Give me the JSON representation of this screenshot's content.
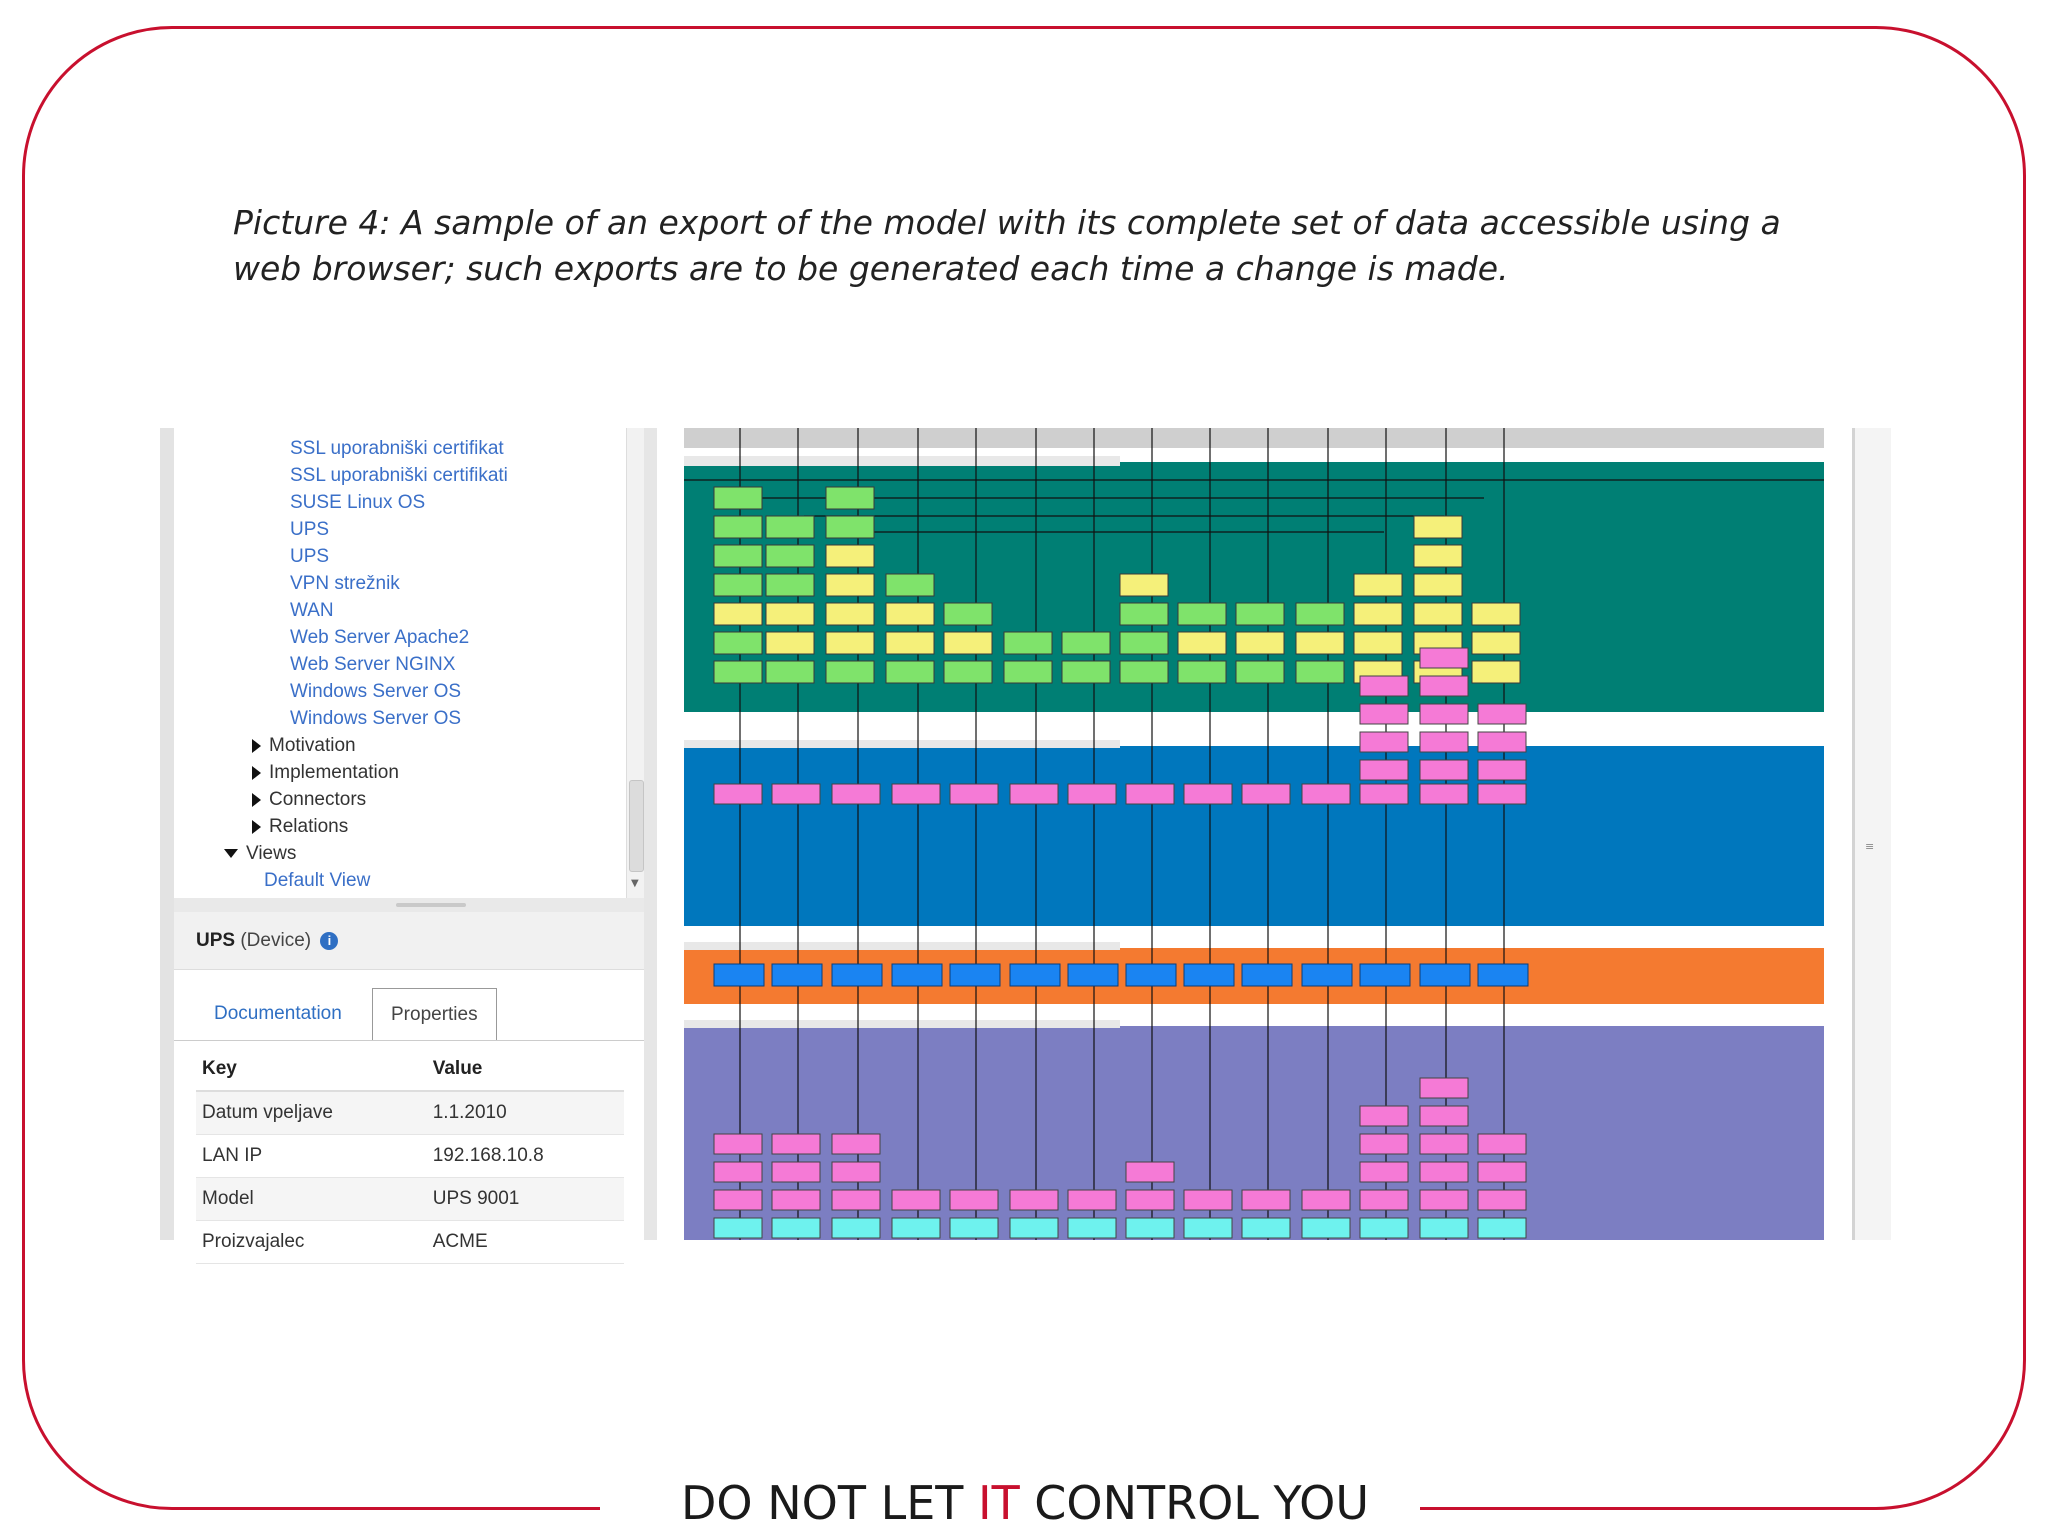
{
  "caption": "Picture 4: A sample of an export of the model with its complete set of data accessible using a web browser; such exports are to be generated each time a change is made.",
  "footer": {
    "part1": "DO NOT LET ",
    "highlight": "IT",
    "part2": " CONTROL YOU"
  },
  "colors": {
    "frame": "#c8102e",
    "link": "#3a6fc8",
    "tech_layer": "#007f74",
    "app_layer": "#0077bd",
    "business_layer": "#f47a30",
    "motivation_layer": "#7c7ec2"
  },
  "tree": {
    "items": [
      {
        "label": "SSL uporabniški certifikat",
        "type": "link"
      },
      {
        "label": "SSL uporabniški certifikati",
        "type": "link"
      },
      {
        "label": "SUSE Linux OS",
        "type": "link"
      },
      {
        "label": "UPS",
        "type": "link"
      },
      {
        "label": "UPS",
        "type": "link"
      },
      {
        "label": "VPN strežnik",
        "type": "link"
      },
      {
        "label": "WAN",
        "type": "link"
      },
      {
        "label": "Web Server Apache2",
        "type": "link"
      },
      {
        "label": "Web Server NGINX",
        "type": "link"
      },
      {
        "label": "Windows Server OS",
        "type": "link"
      },
      {
        "label": "Windows Server OS",
        "type": "link"
      },
      {
        "label": "Motivation",
        "type": "folder"
      },
      {
        "label": "Implementation",
        "type": "folder"
      },
      {
        "label": "Connectors",
        "type": "folder"
      },
      {
        "label": "Relations",
        "type": "folder"
      },
      {
        "label": "Views",
        "type": "folder-open"
      },
      {
        "label": "Default View",
        "type": "view-link"
      }
    ]
  },
  "object": {
    "name": "UPS",
    "type": "(Device)"
  },
  "tabs": {
    "documentation": "Documentation",
    "properties": "Properties"
  },
  "properties": {
    "headers": {
      "key": "Key",
      "value": "Value"
    },
    "rows": [
      {
        "key": "Datum vpeljave",
        "value": "1.1.2010"
      },
      {
        "key": "LAN IP",
        "value": "192.168.10.8"
      },
      {
        "key": "Model",
        "value": "UPS 9001"
      },
      {
        "key": "Proizvajalec",
        "value": "ACME"
      }
    ]
  }
}
